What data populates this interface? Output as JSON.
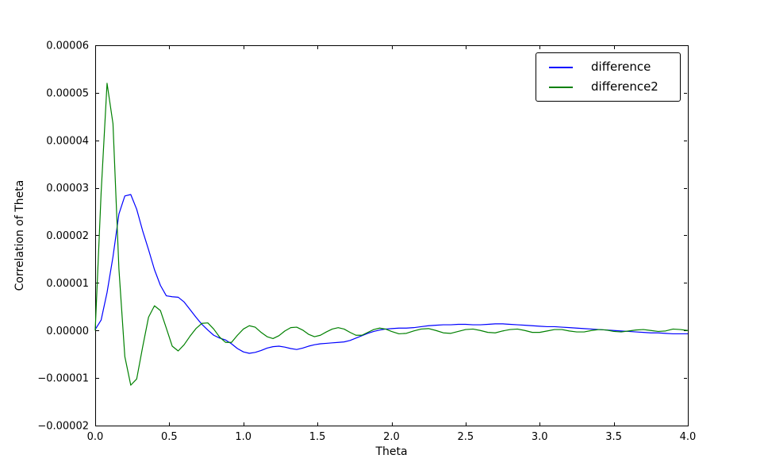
{
  "figure": {
    "background": "#ffffff"
  },
  "chart_data": {
    "type": "line",
    "title": "",
    "xlabel": "Theta",
    "ylabel": "Correlation of Theta",
    "xlim": [
      0.0,
      4.0
    ],
    "ylim": [
      -2e-05,
      6e-05
    ],
    "grid": false,
    "tick_direction": "in",
    "axes_color": "#000000",
    "legend": {
      "location": "upper right",
      "border_color": "#000000",
      "background": "#ffffff"
    },
    "x_ticks": [
      0.0,
      0.5,
      1.0,
      1.5,
      2.0,
      2.5,
      3.0,
      3.5,
      4.0
    ],
    "x_tick_labels": [
      "0.0",
      "0.5",
      "1.0",
      "1.5",
      "2.0",
      "2.5",
      "3.0",
      "3.5",
      "4.0"
    ],
    "y_ticks": [
      -2e-05,
      -1e-05,
      0.0,
      1e-05,
      2e-05,
      3e-05,
      4e-05,
      5e-05,
      6e-05
    ],
    "y_tick_labels": [
      "−0.00002",
      "−0.00001",
      "0.00000",
      "0.00001",
      "0.00002",
      "0.00003",
      "0.00004",
      "0.00005",
      "0.00006"
    ],
    "y_scale": 1e-05,
    "x": [
      0,
      0.04,
      0.08,
      0.12,
      0.16,
      0.2,
      0.24,
      0.28,
      0.32,
      0.36,
      0.4,
      0.44,
      0.48,
      0.52,
      0.56,
      0.6,
      0.64,
      0.68,
      0.72,
      0.76,
      0.8,
      0.84,
      0.88,
      0.92,
      0.96,
      1,
      1.04,
      1.08,
      1.12,
      1.16,
      1.2,
      1.24,
      1.28,
      1.32,
      1.36,
      1.4,
      1.44,
      1.48,
      1.52,
      1.56,
      1.6,
      1.64,
      1.68,
      1.72,
      1.76,
      1.8,
      1.84,
      1.88,
      1.92,
      1.96,
      2,
      2.05,
      2.1,
      2.15,
      2.2,
      2.25,
      2.3,
      2.35,
      2.4,
      2.45,
      2.5,
      2.55,
      2.6,
      2.65,
      2.7,
      2.75,
      2.8,
      2.85,
      2.9,
      2.95,
      3,
      3.05,
      3.1,
      3.15,
      3.2,
      3.25,
      3.3,
      3.35,
      3.4,
      3.45,
      3.5,
      3.55,
      3.6,
      3.65,
      3.7,
      3.75,
      3.8,
      3.85,
      3.9,
      3.95,
      4
    ],
    "series": [
      {
        "name": "difference",
        "color": "#0000ff",
        "y_scaled": [
          0.02,
          0.22,
          0.8,
          1.55,
          2.45,
          2.83,
          2.86,
          2.55,
          2.1,
          1.7,
          1.28,
          0.95,
          0.73,
          0.71,
          0.7,
          0.6,
          0.44,
          0.28,
          0.13,
          0.01,
          -0.1,
          -0.16,
          -0.2,
          -0.28,
          -0.38,
          -0.45,
          -0.48,
          -0.46,
          -0.42,
          -0.37,
          -0.34,
          -0.33,
          -0.35,
          -0.38,
          -0.4,
          -0.37,
          -0.33,
          -0.3,
          -0.28,
          -0.27,
          -0.26,
          -0.25,
          -0.24,
          -0.21,
          -0.16,
          -0.11,
          -0.06,
          -0.02,
          0.01,
          0.03,
          0.04,
          0.05,
          0.05,
          0.06,
          0.08,
          0.1,
          0.11,
          0.12,
          0.12,
          0.13,
          0.13,
          0.12,
          0.12,
          0.13,
          0.14,
          0.14,
          0.13,
          0.12,
          0.11,
          0.1,
          0.09,
          0.08,
          0.08,
          0.07,
          0.06,
          0.05,
          0.04,
          0.03,
          0.02,
          0.01,
          0,
          -0.01,
          -0.02,
          -0.03,
          -0.04,
          -0.05,
          -0.05,
          -0.06,
          -0.07,
          -0.07,
          -0.07
        ]
      },
      {
        "name": "difference2",
        "color": "#008000",
        "y_scaled": [
          0,
          2.9,
          5.2,
          4.35,
          1.3,
          -0.55,
          -1.15,
          -1.02,
          -0.35,
          0.28,
          0.52,
          0.42,
          0.05,
          -0.33,
          -0.43,
          -0.3,
          -0.12,
          0.04,
          0.15,
          0.16,
          0.03,
          -0.14,
          -0.25,
          -0.25,
          -0.1,
          0.03,
          0.1,
          0.07,
          -0.04,
          -0.13,
          -0.17,
          -0.11,
          -0.01,
          0.06,
          0.07,
          0.01,
          -0.08,
          -0.13,
          -0.1,
          -0.03,
          0.03,
          0.06,
          0.03,
          -0.04,
          -0.1,
          -0.1,
          -0.04,
          0.02,
          0.05,
          0.03,
          -0.02,
          -0.07,
          -0.06,
          -0.01,
          0.03,
          0.04,
          0,
          -0.05,
          -0.06,
          -0.02,
          0.02,
          0.03,
          0,
          -0.04,
          -0.05,
          -0.01,
          0.02,
          0.03,
          0,
          -0.04,
          -0.04,
          -0.01,
          0.02,
          0.02,
          -0.01,
          -0.03,
          -0.03,
          0,
          0.02,
          0.01,
          -0.02,
          -0.03,
          -0.01,
          0.01,
          0.02,
          0,
          -0.02,
          -0.01,
          0.03,
          0.02,
          0
        ]
      }
    ]
  }
}
